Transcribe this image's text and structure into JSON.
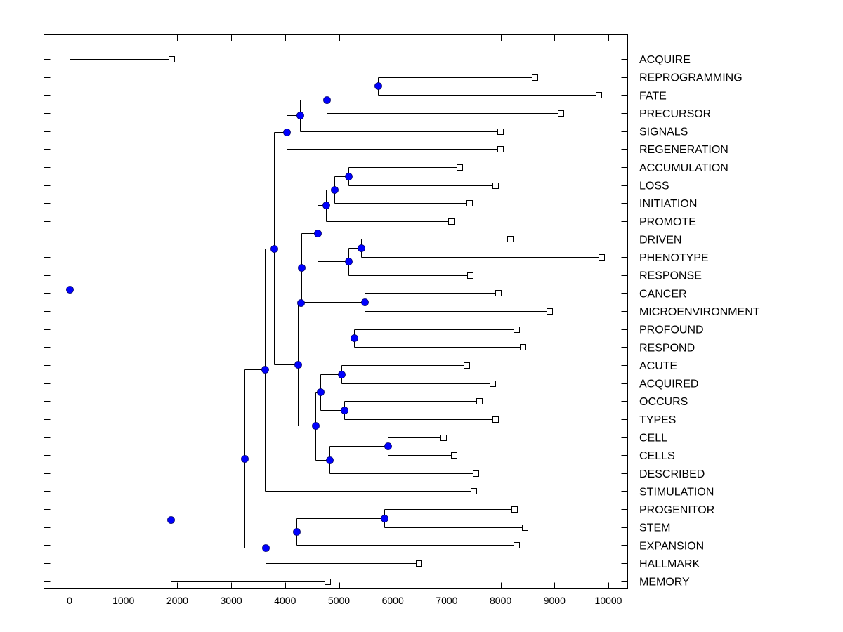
{
  "chart_data": {
    "type": "dendrogram",
    "title": "",
    "xlabel": "",
    "ylabel": "",
    "xlim": [
      -480,
      10350
    ],
    "xticks": [
      0,
      1000,
      2000,
      3000,
      4000,
      5000,
      6000,
      7000,
      8000,
      9000,
      10000
    ],
    "xtick_labels": [
      "0",
      "1000",
      "2000",
      "3000",
      "4000",
      "5000",
      "6000",
      "7000",
      "8000",
      "9000",
      "10000"
    ],
    "grid": false,
    "colors": {
      "node": "#0000ff",
      "line": "#000000",
      "leaf_marker": "#ffffff"
    },
    "leaves": [
      {
        "label": "ACQUIRE",
        "x": 1890
      },
      {
        "label": "REPROGRAMMING",
        "x": 8630
      },
      {
        "label": "FATE",
        "x": 9820
      },
      {
        "label": "PRECURSOR",
        "x": 9110
      },
      {
        "label": "SIGNALS",
        "x": 7990
      },
      {
        "label": "REGENERATION",
        "x": 7990
      },
      {
        "label": "ACCUMULATION",
        "x": 7240
      },
      {
        "label": "LOSS",
        "x": 7900
      },
      {
        "label": "INITIATION",
        "x": 7420
      },
      {
        "label": "PROMOTE",
        "x": 7080
      },
      {
        "label": "DRIVEN",
        "x": 8170
      },
      {
        "label": "PHENOTYPE",
        "x": 9870
      },
      {
        "label": "RESPONSE",
        "x": 7430
      },
      {
        "label": "CANCER",
        "x": 7950
      },
      {
        "label": "MICROENVIRONMENT",
        "x": 8900
      },
      {
        "label": "PROFOUND",
        "x": 8290
      },
      {
        "label": "RESPOND",
        "x": 8410
      },
      {
        "label": "ACUTE",
        "x": 7370
      },
      {
        "label": "ACQUIRED",
        "x": 7850
      },
      {
        "label": "OCCURS",
        "x": 7600
      },
      {
        "label": "TYPES",
        "x": 7900
      },
      {
        "label": "CELL",
        "x": 6940
      },
      {
        "label": "CELLS",
        "x": 7130
      },
      {
        "label": "DESCRIBED",
        "x": 7540
      },
      {
        "label": "STIMULATION",
        "x": 7500
      },
      {
        "label": "PROGENITOR",
        "x": 8250
      },
      {
        "label": "STEM",
        "x": 8450
      },
      {
        "label": "EXPANSION",
        "x": 8290
      },
      {
        "label": "HALLMARK",
        "x": 6480
      },
      {
        "label": "MEMORY",
        "x": 4780
      }
    ],
    "nodes": [
      {
        "id": "n_rep_fate",
        "x": 5720,
        "children": [
          "L1",
          "L2"
        ]
      },
      {
        "id": "n_prec",
        "x": 4770,
        "children": [
          "n_rep_fate",
          "L3"
        ]
      },
      {
        "id": "n_sig",
        "x": 4270,
        "children": [
          "n_prec",
          "L4"
        ]
      },
      {
        "id": "n_regen",
        "x": 4030,
        "children": [
          "n_sig",
          "L5"
        ]
      },
      {
        "id": "n_acc_loss",
        "x": 5180,
        "children": [
          "L6",
          "L7"
        ]
      },
      {
        "id": "n_init",
        "x": 4910,
        "children": [
          "n_acc_loss",
          "L8"
        ]
      },
      {
        "id": "n_prom",
        "x": 4760,
        "children": [
          "n_init",
          "L9"
        ]
      },
      {
        "id": "n_drv_phen",
        "x": 5410,
        "children": [
          "L10",
          "L11"
        ]
      },
      {
        "id": "n_resp",
        "x": 5180,
        "children": [
          "n_drv_phen",
          "L12"
        ]
      },
      {
        "id": "n_A",
        "x": 4600,
        "children": [
          "n_prom",
          "n_resp"
        ]
      },
      {
        "id": "n_can_micro",
        "x": 5470,
        "children": [
          "L13",
          "L14"
        ]
      },
      {
        "id": "n_B",
        "x": 4300,
        "children": [
          "n_A",
          "n_can_micro"
        ]
      },
      {
        "id": "n_prof_resp",
        "x": 5280,
        "children": [
          "L15",
          "L16"
        ]
      },
      {
        "id": "n_C",
        "x": 4290,
        "children": [
          "n_B",
          "n_prof_resp"
        ]
      },
      {
        "id": "n_acu_acq",
        "x": 5050,
        "children": [
          "L17",
          "L18"
        ]
      },
      {
        "id": "n_occ_typ",
        "x": 5100,
        "children": [
          "L19",
          "L20"
        ]
      },
      {
        "id": "n_D",
        "x": 4650,
        "children": [
          "n_acu_acq",
          "n_occ_typ"
        ]
      },
      {
        "id": "n_cell_cells",
        "x": 5900,
        "children": [
          "L21",
          "L22"
        ]
      },
      {
        "id": "n_desc",
        "x": 4820,
        "children": [
          "n_cell_cells",
          "L23"
        ]
      },
      {
        "id": "n_E",
        "x": 4560,
        "children": [
          "n_D",
          "n_desc"
        ]
      },
      {
        "id": "n_F",
        "x": 4240,
        "children": [
          "n_C",
          "n_E"
        ]
      },
      {
        "id": "n_G",
        "x": 3800,
        "children": [
          "n_regen",
          "n_F"
        ]
      },
      {
        "id": "n_stim",
        "x": 3630,
        "children": [
          "n_G",
          "L24"
        ]
      },
      {
        "id": "n_prog_stem",
        "x": 5840,
        "children": [
          "L25",
          "L26"
        ]
      },
      {
        "id": "n_exp",
        "x": 4210,
        "children": [
          "n_prog_stem",
          "L27"
        ]
      },
      {
        "id": "n_hall",
        "x": 3640,
        "children": [
          "n_exp",
          "L28"
        ]
      },
      {
        "id": "n_H",
        "x": 3240,
        "children": [
          "n_stim",
          "n_hall"
        ]
      },
      {
        "id": "n_mem",
        "x": 1880,
        "children": [
          "n_H",
          "L29"
        ]
      },
      {
        "id": "n_root",
        "x": 0,
        "children": [
          "L0",
          "n_mem"
        ]
      }
    ]
  }
}
